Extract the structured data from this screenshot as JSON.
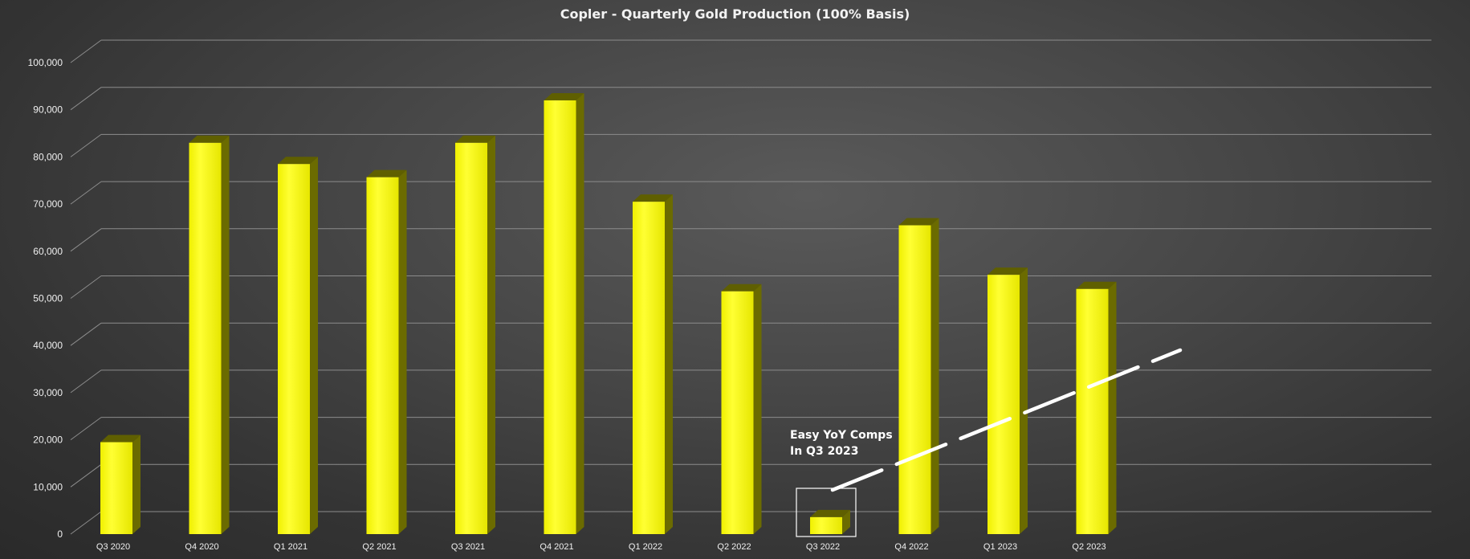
{
  "chart_data": {
    "type": "bar",
    "title": "Copler - Quarterly Gold Production (100% Basis)",
    "xlabel": "",
    "ylabel": "",
    "categories": [
      "Q3 2020",
      "Q4 2020",
      "Q1 2021",
      "Q2 2021",
      "Q3 2021",
      "Q4 2021",
      "Q1 2022",
      "Q2 2022",
      "Q3 2022",
      "Q4 2022",
      "Q1 2023",
      "Q2 2023"
    ],
    "values": [
      19500,
      83000,
      78500,
      75700,
      83000,
      92000,
      70500,
      51500,
      3600,
      65500,
      55000,
      52000
    ],
    "ylim": [
      0,
      100000
    ],
    "yticks": [
      "0",
      "10,000",
      "20,000",
      "30,000",
      "40,000",
      "50,000",
      "60,000",
      "70,000",
      "80,000",
      "90,000",
      "100,000"
    ],
    "grid": true,
    "legend": "none",
    "bar_color": "#ffff00",
    "bar_side_color": "#6b6b00",
    "annotation": {
      "line1": "Easy YoY Comps",
      "line2": "In Q3 2023",
      "highlighted_category": "Q3 2022",
      "trend_color": "#ffffff"
    }
  }
}
